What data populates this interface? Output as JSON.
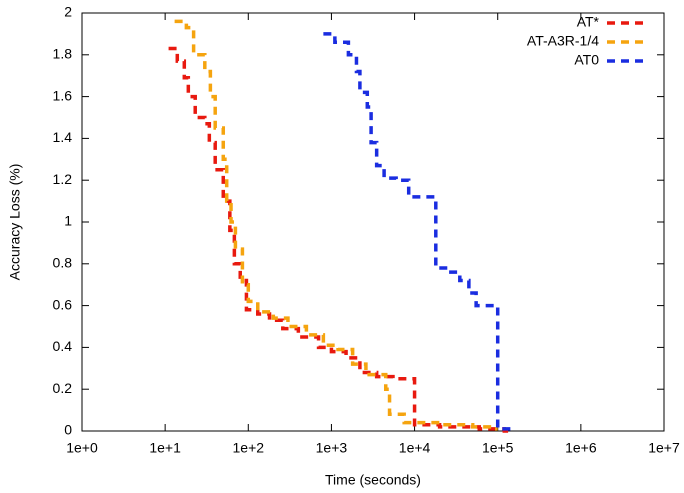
{
  "chart_data": {
    "type": "line",
    "xlabel": "Time (seconds)",
    "ylabel": "Accuracy Loss (%)",
    "xscale": "log",
    "xlim": [
      1,
      10000000
    ],
    "ylim": [
      0,
      2
    ],
    "legend": "upper right",
    "grid": false,
    "xticks": [
      {
        "value": 1,
        "label": "1e+0"
      },
      {
        "value": 10,
        "label": "1e+1"
      },
      {
        "value": 100,
        "label": "1e+2"
      },
      {
        "value": 1000,
        "label": "1e+3"
      },
      {
        "value": 10000,
        "label": "1e+4"
      },
      {
        "value": 100000,
        "label": "1e+5"
      },
      {
        "value": 1000000,
        "label": "1e+6"
      },
      {
        "value": 10000000,
        "label": "1e+7"
      }
    ],
    "yticks": [
      0,
      0.2,
      0.4,
      0.6,
      0.8,
      1,
      1.2,
      1.4,
      1.6,
      1.8,
      2
    ],
    "series": [
      {
        "name": "AT*",
        "color": "#e8190f",
        "x": [
          11,
          14,
          14,
          17,
          17,
          19,
          19,
          23,
          23,
          30,
          30,
          34,
          34,
          40,
          40,
          50,
          50,
          60,
          60,
          68,
          68,
          80,
          80,
          95,
          95,
          130,
          130,
          180,
          180,
          260,
          260,
          400,
          400,
          700,
          700,
          1000,
          1000,
          1500,
          1500,
          2200,
          2200,
          3500,
          3500,
          5500,
          5500,
          10000,
          10000,
          20000,
          20000,
          60000,
          60000,
          120000,
          120000,
          150000
        ],
        "values": [
          1.83,
          1.83,
          1.77,
          1.77,
          1.69,
          1.69,
          1.6,
          1.6,
          1.5,
          1.5,
          1.47,
          1.47,
          1.38,
          1.38,
          1.25,
          1.25,
          1.1,
          1.1,
          0.96,
          0.96,
          0.8,
          0.8,
          0.72,
          0.72,
          0.58,
          0.58,
          0.56,
          0.56,
          0.53,
          0.53,
          0.49,
          0.49,
          0.45,
          0.45,
          0.4,
          0.4,
          0.38,
          0.38,
          0.35,
          0.35,
          0.28,
          0.28,
          0.26,
          0.26,
          0.25,
          0.25,
          0.03,
          0.03,
          0.02,
          0.02,
          0.01,
          0.01,
          0,
          0
        ]
      },
      {
        "name": "AT-A3R-1/4",
        "color": "#f5a40f",
        "x": [
          13,
          18,
          18,
          22,
          22,
          30,
          30,
          35,
          35,
          40,
          40,
          50,
          50,
          55,
          55,
          62,
          62,
          70,
          70,
          85,
          85,
          100,
          100,
          130,
          130,
          200,
          200,
          300,
          300,
          500,
          500,
          800,
          800,
          1200,
          1200,
          1800,
          1800,
          2600,
          2600,
          4500,
          4500,
          5000,
          5000,
          7500,
          7500,
          20000,
          20000,
          50000,
          50000,
          90000,
          90000,
          100000
        ],
        "values": [
          1.96,
          1.96,
          1.93,
          1.93,
          1.8,
          1.8,
          1.72,
          1.72,
          1.6,
          1.6,
          1.45,
          1.45,
          1.3,
          1.3,
          1.1,
          1.1,
          1.0,
          1.0,
          0.87,
          0.87,
          0.7,
          0.7,
          0.62,
          0.62,
          0.57,
          0.57,
          0.54,
          0.54,
          0.5,
          0.5,
          0.46,
          0.46,
          0.41,
          0.41,
          0.39,
          0.39,
          0.32,
          0.32,
          0.27,
          0.27,
          0.2,
          0.2,
          0.08,
          0.08,
          0.04,
          0.04,
          0.03,
          0.03,
          0.02,
          0.02,
          0.01,
          0.01
        ]
      },
      {
        "name": "AT0",
        "color": "#1a2de0",
        "x": [
          800,
          1100,
          1100,
          1600,
          1600,
          2000,
          2000,
          2200,
          2200,
          2700,
          2700,
          3000,
          3000,
          3500,
          3500,
          4300,
          4300,
          6000,
          6000,
          8500,
          8500,
          18000,
          18000,
          25000,
          25000,
          35000,
          35000,
          45000,
          45000,
          55000,
          55000,
          100000,
          100000,
          150000,
          150000
        ],
        "values": [
          1.9,
          1.9,
          1.86,
          1.86,
          1.8,
          1.8,
          1.72,
          1.72,
          1.62,
          1.62,
          1.55,
          1.55,
          1.38,
          1.38,
          1.27,
          1.27,
          1.21,
          1.21,
          1.2,
          1.2,
          1.12,
          1.12,
          0.78,
          0.78,
          0.76,
          0.76,
          0.72,
          0.72,
          0.66,
          0.66,
          0.6,
          0.6,
          0.01,
          0.01,
          0
        ]
      }
    ]
  }
}
